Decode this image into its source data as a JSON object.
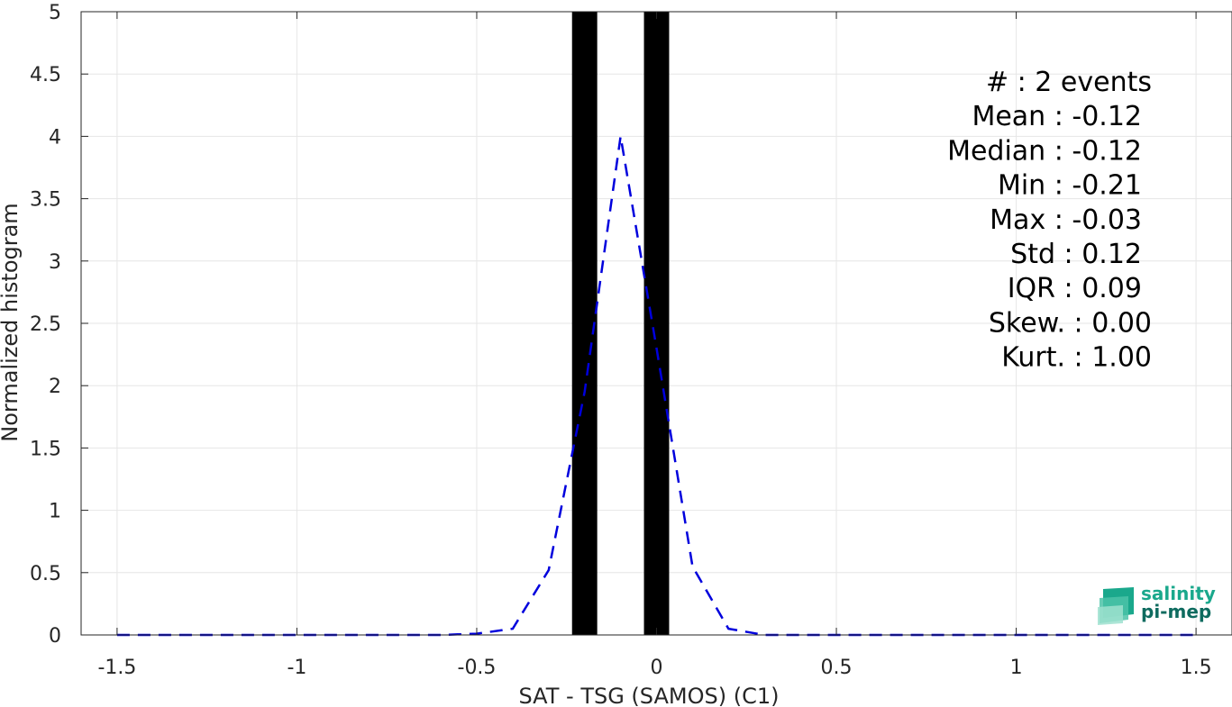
{
  "chart_data": {
    "type": "bar",
    "xlabel": "SAT - TSG (SAMOS) (C1)",
    "ylabel": "Normalized histogram",
    "xlim": [
      -1.6,
      1.6
    ],
    "ylim": [
      0,
      5
    ],
    "xticks": [
      -1.5,
      -1,
      -0.5,
      0,
      0.5,
      1,
      1.5
    ],
    "xtick_labels": [
      "-1.5",
      "-1",
      "-0.5",
      "0",
      "0.5",
      "1",
      "1.5"
    ],
    "yticks": [
      0,
      0.5,
      1,
      1.5,
      2,
      2.5,
      3,
      3.5,
      4,
      4.5,
      5
    ],
    "ytick_labels": [
      "0",
      "0.5",
      "1",
      "1.5",
      "2",
      "2.5",
      "3",
      "3.5",
      "4",
      "4.5",
      "5"
    ],
    "grid": true,
    "bars": {
      "color": "#000000",
      "width": 0.07,
      "x": [
        -0.2,
        0.0
      ],
      "values": [
        5,
        5
      ]
    },
    "fit_curve": {
      "style": "dashed",
      "color": "#0000dd",
      "x": [
        -1.5,
        -1.4,
        -1.3,
        -1.2,
        -1.1,
        -1.0,
        -0.9,
        -0.8,
        -0.7,
        -0.6,
        -0.5,
        -0.4,
        -0.3,
        -0.2,
        -0.1,
        0.0,
        0.1,
        0.2,
        0.3,
        0.4,
        0.5,
        0.6,
        0.7,
        0.8,
        0.9,
        1.0,
        1.1,
        1.2,
        1.3,
        1.4,
        1.5
      ],
      "y": [
        0,
        0,
        0,
        0,
        0,
        0,
        0,
        0,
        0,
        0,
        0.01,
        0.05,
        0.52,
        1.95,
        4.0,
        2.3,
        0.55,
        0.05,
        0,
        0,
        0,
        0,
        0,
        0,
        0,
        0,
        0,
        0,
        0,
        0,
        0
      ]
    },
    "annotations": [
      "#  : 2 events",
      "Mean : -0.12",
      "Median : -0.12",
      "Min : -0.21",
      "Max : -0.03",
      "Std : 0.12",
      "IQR : 0.09",
      "Skew. : 0.00",
      "Kurt. : 1.00"
    ]
  },
  "logo": {
    "line1": "salinity",
    "line2": "pi-mep",
    "color1": "#1aa88c",
    "color2": "#0e6b5f"
  }
}
